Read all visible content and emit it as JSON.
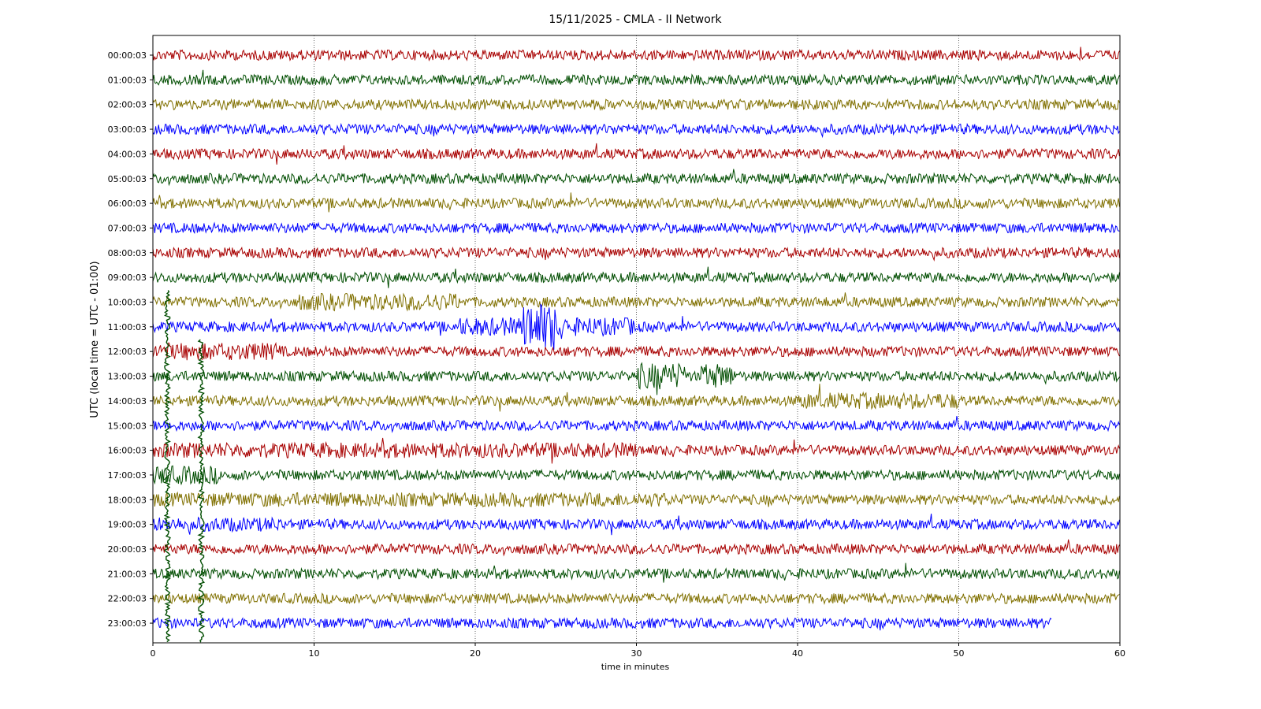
{
  "chart_data": {
    "type": "line",
    "title": "15/11/2025 - CMLA - II Network",
    "xlabel": "time in minutes",
    "ylabel": "UTC (local time = UTC - 01:00)",
    "xlim": [
      0,
      60
    ],
    "x_ticks": [
      "0",
      "10",
      "20",
      "30",
      "40",
      "50",
      "60"
    ],
    "x_grid": "dotted vertical lines at each x tick",
    "line_colors": [
      "#a80000",
      "#004d00",
      "#807000",
      "#0000ff"
    ],
    "rows": [
      {
        "label": "00:00:03",
        "x_end": 60
      },
      {
        "label": "01:00:03",
        "x_end": 60
      },
      {
        "label": "02:00:03",
        "x_end": 60
      },
      {
        "label": "03:00:03",
        "x_end": 60
      },
      {
        "label": "04:00:03",
        "x_end": 60
      },
      {
        "label": "05:00:03",
        "x_end": 60
      },
      {
        "label": "06:00:03",
        "x_end": 60
      },
      {
        "label": "07:00:03",
        "x_end": 60
      },
      {
        "label": "08:00:03",
        "x_end": 60
      },
      {
        "label": "09:00:03",
        "x_end": 60
      },
      {
        "label": "10:00:03",
        "x_end": 60
      },
      {
        "label": "11:00:03",
        "x_end": 60
      },
      {
        "label": "12:00:03",
        "x_end": 60
      },
      {
        "label": "13:00:03",
        "x_end": 60
      },
      {
        "label": "14:00:03",
        "x_end": 60
      },
      {
        "label": "15:00:03",
        "x_end": 60
      },
      {
        "label": "16:00:03",
        "x_end": 60
      },
      {
        "label": "17:00:03",
        "x_end": 60
      },
      {
        "label": "18:00:03",
        "x_end": 60
      },
      {
        "label": "19:00:03",
        "x_end": 60
      },
      {
        "label": "20:00:03",
        "x_end": 60
      },
      {
        "label": "21:00:03",
        "x_end": 60
      },
      {
        "label": "22:00:03",
        "x_end": 60
      },
      {
        "label": "23:00:03",
        "x_end": 55.8
      }
    ]
  }
}
